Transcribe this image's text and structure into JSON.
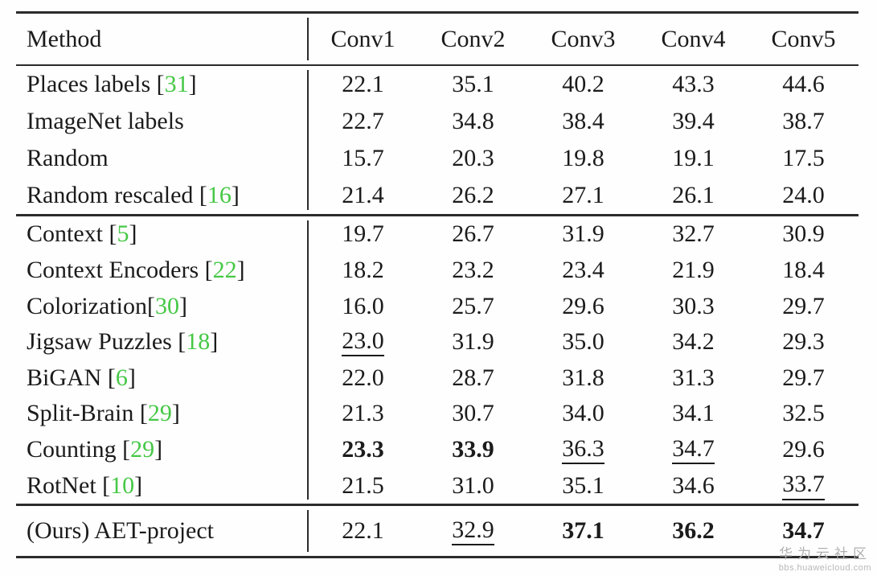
{
  "colors": {
    "citation_green": "#46c846",
    "text": "#1b1b1b",
    "rule": "#2b2b2b",
    "watermark_gray": "#b0b0b0"
  },
  "watermark": {
    "title": "华为云社区",
    "url": "bbs.huaweicloud.com"
  },
  "table": {
    "header": {
      "method": "Method",
      "columns": [
        "Conv1",
        "Conv2",
        "Conv3",
        "Conv4",
        "Conv5"
      ]
    },
    "sections": [
      {
        "rows": [
          {
            "method": {
              "pre": "Places labels [",
              "cite": "31",
              "post": "]"
            },
            "values": [
              {
                "v": "22.1"
              },
              {
                "v": "35.1"
              },
              {
                "v": "40.2"
              },
              {
                "v": "43.3"
              },
              {
                "v": "44.6"
              }
            ]
          },
          {
            "method": {
              "pre": "ImageNet labels"
            },
            "values": [
              {
                "v": "22.7"
              },
              {
                "v": "34.8"
              },
              {
                "v": "38.4"
              },
              {
                "v": "39.4"
              },
              {
                "v": "38.7"
              }
            ]
          },
          {
            "method": {
              "pre": "Random"
            },
            "values": [
              {
                "v": "15.7"
              },
              {
                "v": "20.3"
              },
              {
                "v": "19.8"
              },
              {
                "v": "19.1"
              },
              {
                "v": "17.5"
              }
            ]
          },
          {
            "method": {
              "pre": "Random rescaled [",
              "cite": "16",
              "post": "]"
            },
            "values": [
              {
                "v": "21.4"
              },
              {
                "v": "26.2"
              },
              {
                "v": "27.1"
              },
              {
                "v": "26.1"
              },
              {
                "v": "24.0"
              }
            ]
          }
        ]
      },
      {
        "rows": [
          {
            "method": {
              "pre": "Context [",
              "cite": "5",
              "post": "]"
            },
            "values": [
              {
                "v": "19.7"
              },
              {
                "v": "26.7"
              },
              {
                "v": "31.9"
              },
              {
                "v": "32.7"
              },
              {
                "v": "30.9"
              }
            ]
          },
          {
            "method": {
              "pre": "Context Encoders [",
              "cite": "22",
              "post": "]"
            },
            "values": [
              {
                "v": "18.2"
              },
              {
                "v": "23.2"
              },
              {
                "v": "23.4"
              },
              {
                "v": "21.9"
              },
              {
                "v": "18.4"
              }
            ]
          },
          {
            "method": {
              "pre": "Colorization[",
              "cite": "30",
              "post": "]"
            },
            "values": [
              {
                "v": "16.0"
              },
              {
                "v": "25.7"
              },
              {
                "v": "29.6"
              },
              {
                "v": "30.3"
              },
              {
                "v": "29.7"
              }
            ]
          },
          {
            "method": {
              "pre": "Jigsaw Puzzles [",
              "cite": "18",
              "post": "]"
            },
            "values": [
              {
                "v": "23.0",
                "s": "u"
              },
              {
                "v": "31.9"
              },
              {
                "v": "35.0"
              },
              {
                "v": "34.2"
              },
              {
                "v": "29.3"
              }
            ]
          },
          {
            "method": {
              "pre": "BiGAN [",
              "cite": "6",
              "post": "]"
            },
            "values": [
              {
                "v": "22.0"
              },
              {
                "v": "28.7"
              },
              {
                "v": "31.8"
              },
              {
                "v": "31.3"
              },
              {
                "v": "29.7"
              }
            ]
          },
          {
            "method": {
              "pre": "Split-Brain [",
              "cite": "29",
              "post": "]"
            },
            "values": [
              {
                "v": "21.3"
              },
              {
                "v": "30.7"
              },
              {
                "v": "34.0"
              },
              {
                "v": "34.1"
              },
              {
                "v": "32.5"
              }
            ]
          },
          {
            "method": {
              "pre": "Counting [",
              "cite": "29",
              "post": "]"
            },
            "values": [
              {
                "v": "23.3",
                "s": "b"
              },
              {
                "v": "33.9",
                "s": "b"
              },
              {
                "v": "36.3",
                "s": "u"
              },
              {
                "v": "34.7",
                "s": "u"
              },
              {
                "v": "29.6"
              }
            ]
          },
          {
            "method": {
              "pre": "RotNet [",
              "cite": "10",
              "post": "]"
            },
            "values": [
              {
                "v": "21.5"
              },
              {
                "v": "31.0"
              },
              {
                "v": "35.1"
              },
              {
                "v": "34.6"
              },
              {
                "v": "33.7",
                "s": "u"
              }
            ]
          }
        ]
      },
      {
        "rows": [
          {
            "method": {
              "pre": "(Ours) AET-project"
            },
            "values": [
              {
                "v": "22.1"
              },
              {
                "v": "32.9",
                "s": "u"
              },
              {
                "v": "37.1",
                "s": "b"
              },
              {
                "v": "36.2",
                "s": "b"
              },
              {
                "v": "34.7",
                "s": "b"
              }
            ]
          }
        ]
      }
    ]
  }
}
